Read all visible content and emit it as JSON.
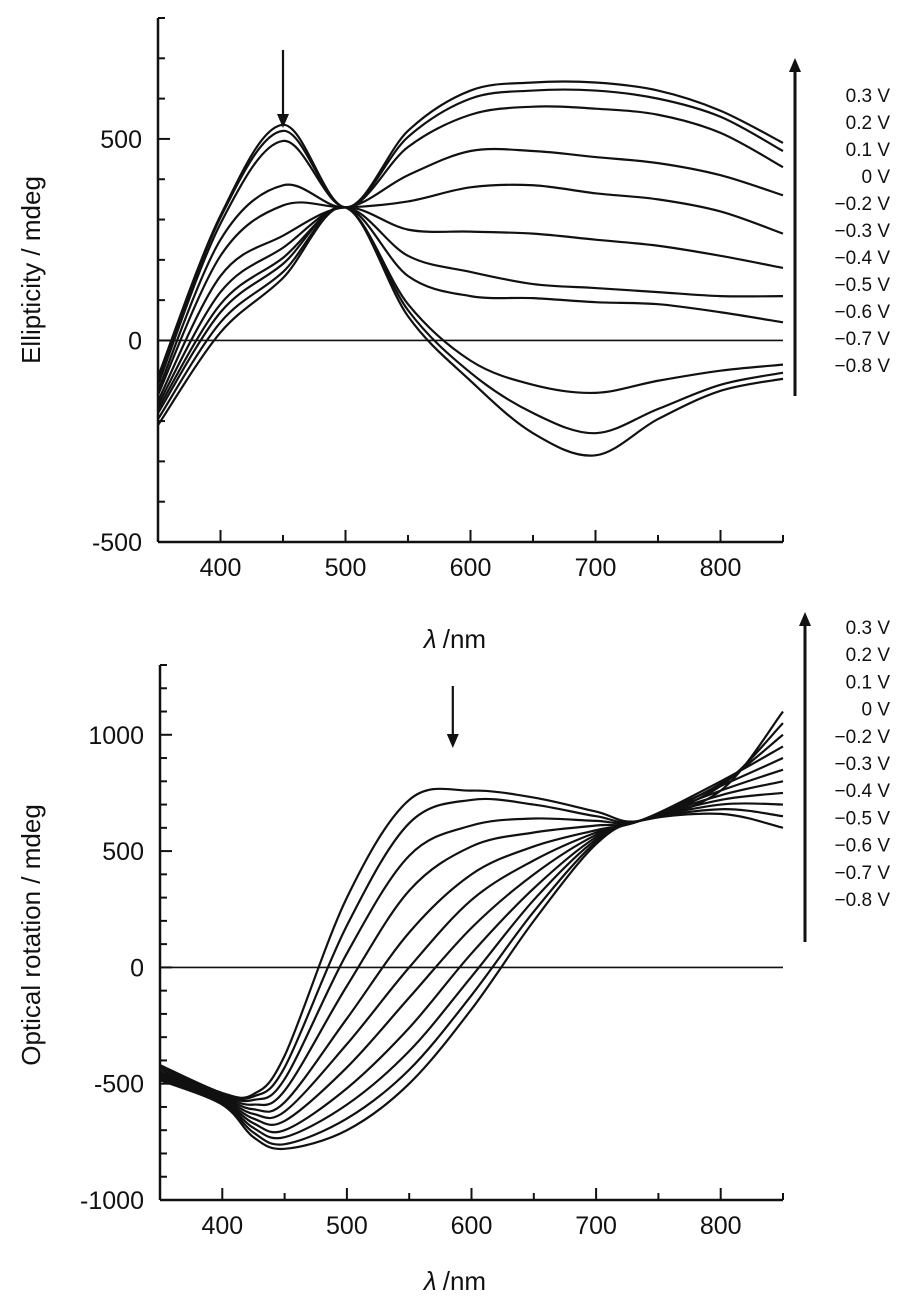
{
  "chart_data": [
    {
      "type": "line",
      "ylabel": "Ellipticity / mdeg",
      "xlabel_symbol": "λ",
      "xlabel_unit": "/nm",
      "xlim": [
        350,
        850
      ],
      "ylim": [
        -500,
        800
      ],
      "xticks": [
        400,
        500,
        600,
        700,
        800
      ],
      "yticks": [
        -500,
        0,
        500
      ],
      "ytick_labels": [
        "-500",
        "0",
        "500"
      ],
      "grid": false,
      "legend_placement": "right",
      "annotations": {
        "arrow_at_x": 450,
        "arrow_direction": "down"
      },
      "voltage_labels": [
        "0.3 V",
        "0.2 V",
        "0.1 V",
        "0 V",
        "−0.2 V",
        "−0.3 V",
        "−0.4 V",
        "−0.5 V",
        "−0.6 V",
        "−0.7 V",
        "−0.8 V"
      ],
      "voltage_arrow_direction": "up",
      "zero_line": 0,
      "x": [
        350,
        400,
        450,
        500,
        550,
        600,
        650,
        700,
        750,
        800,
        850
      ],
      "series": [
        {
          "values": [
            -90,
            310,
            535,
            330,
            520,
            620,
            640,
            640,
            620,
            570,
            490
          ]
        },
        {
          "values": [
            -100,
            305,
            520,
            330,
            505,
            600,
            620,
            620,
            600,
            555,
            470
          ]
        },
        {
          "values": [
            -110,
            290,
            495,
            330,
            480,
            560,
            580,
            575,
            560,
            515,
            430
          ]
        },
        {
          "values": [
            -125,
            250,
            385,
            330,
            410,
            470,
            470,
            455,
            440,
            410,
            360
          ]
        },
        {
          "values": [
            -135,
            210,
            335,
            330,
            345,
            380,
            385,
            365,
            350,
            320,
            265
          ]
        },
        {
          "values": [
            -150,
            160,
            260,
            330,
            275,
            270,
            265,
            250,
            235,
            210,
            180
          ]
        },
        {
          "values": [
            -160,
            120,
            230,
            330,
            210,
            170,
            140,
            130,
            120,
            110,
            110
          ]
        },
        {
          "values": [
            -170,
            90,
            205,
            330,
            160,
            110,
            105,
            95,
            90,
            70,
            45
          ]
        },
        {
          "values": [
            -180,
            70,
            190,
            330,
            90,
            -50,
            -110,
            -130,
            -100,
            -75,
            -60
          ]
        },
        {
          "values": [
            -195,
            45,
            170,
            330,
            75,
            -80,
            -180,
            -230,
            -170,
            -110,
            -80
          ]
        },
        {
          "values": [
            -210,
            20,
            155,
            330,
            60,
            -100,
            -230,
            -285,
            -195,
            -125,
            -95
          ]
        }
      ]
    },
    {
      "type": "line",
      "ylabel": "Optical rotation / mdeg",
      "xlabel_symbol": "λ",
      "xlabel_unit": "/nm",
      "xlim": [
        350,
        850
      ],
      "ylim": [
        -1000,
        1300
      ],
      "xticks": [
        400,
        500,
        600,
        700,
        800
      ],
      "yticks": [
        -1000,
        -500,
        0,
        500,
        1000
      ],
      "ytick_labels": [
        "-1000",
        "-500",
        "0",
        "500",
        "1000"
      ],
      "grid": false,
      "legend_placement": "right",
      "annotations": {
        "arrow_at_x": 585,
        "arrow_direction": "down"
      },
      "voltage_labels": [
        "0.3 V",
        "0.2 V",
        "0.1 V",
        "0 V",
        "−0.2 V",
        "−0.3 V",
        "−0.4 V",
        "−0.5 V",
        "−0.6 V",
        "−0.7 V",
        "−0.8 V"
      ],
      "voltage_arrow_direction": "up",
      "zero_line": 0,
      "x": [
        350,
        400,
        425,
        450,
        500,
        550,
        600,
        650,
        700,
        735,
        800,
        850
      ],
      "series": [
        {
          "values": [
            -420,
            -540,
            -545,
            -380,
            300,
            720,
            760,
            730,
            670,
            630,
            760,
            1100
          ]
        },
        {
          "values": [
            -430,
            -545,
            -555,
            -430,
            180,
            620,
            720,
            700,
            650,
            630,
            780,
            1050
          ]
        },
        {
          "values": [
            -440,
            -550,
            -570,
            -480,
            60,
            480,
            610,
            640,
            630,
            630,
            790,
            1000
          ]
        },
        {
          "values": [
            -450,
            -555,
            -590,
            -530,
            -80,
            330,
            520,
            580,
            610,
            630,
            800,
            950
          ]
        },
        {
          "values": [
            -455,
            -560,
            -610,
            -580,
            -220,
            150,
            400,
            520,
            590,
            630,
            780,
            900
          ]
        },
        {
          "values": [
            -460,
            -565,
            -630,
            -620,
            -330,
            0,
            290,
            460,
            580,
            630,
            760,
            850
          ]
        },
        {
          "values": [
            -465,
            -570,
            -650,
            -660,
            -430,
            -130,
            170,
            400,
            570,
            630,
            740,
            800
          ]
        },
        {
          "values": [
            -470,
            -575,
            -670,
            -700,
            -520,
            -260,
            60,
            340,
            560,
            630,
            720,
            750
          ]
        },
        {
          "values": [
            -475,
            -580,
            -690,
            -730,
            -590,
            -360,
            -40,
            290,
            550,
            630,
            700,
            700
          ]
        },
        {
          "values": [
            -480,
            -585,
            -710,
            -760,
            -650,
            -440,
            -120,
            240,
            540,
            630,
            680,
            650
          ]
        },
        {
          "values": [
            -485,
            -590,
            -730,
            -780,
            -700,
            -500,
            -180,
            200,
            530,
            630,
            660,
            600
          ]
        }
      ]
    }
  ]
}
